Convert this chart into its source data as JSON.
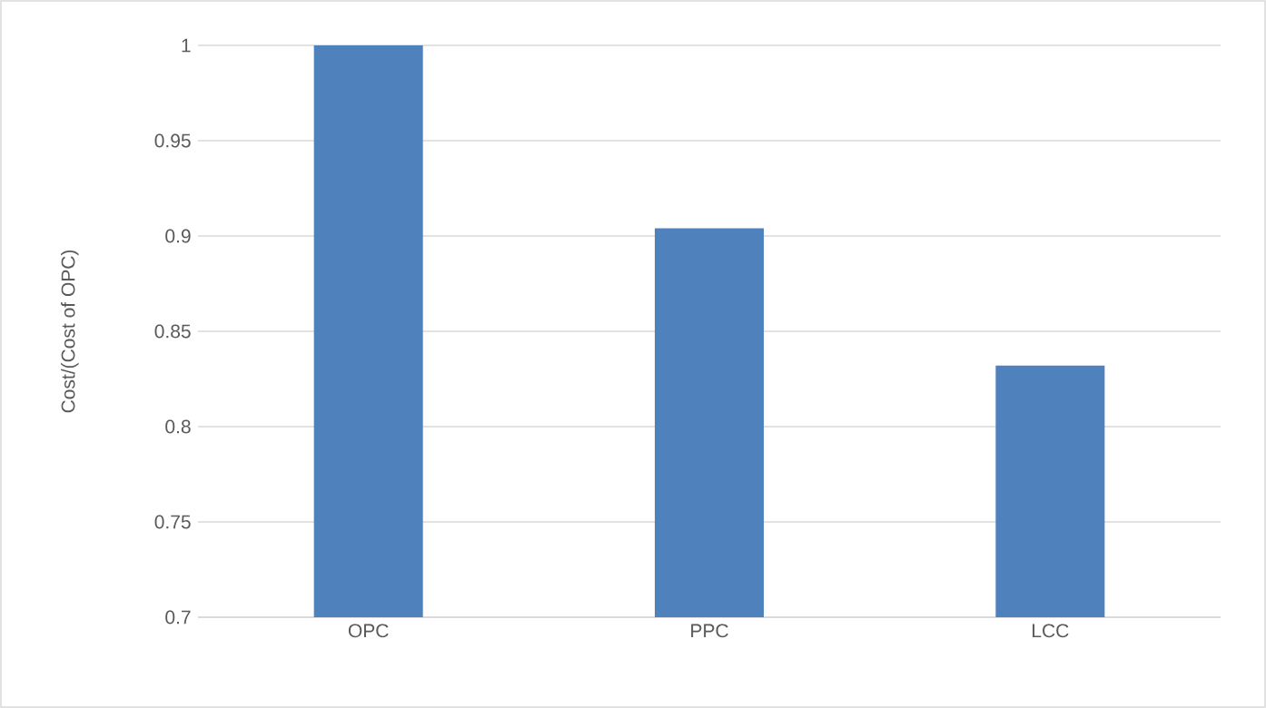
{
  "chart_data": {
    "type": "bar",
    "ylabel": "Cost/(Cost of OPC)",
    "categories": [
      "OPC",
      "PPC",
      "LCC"
    ],
    "values": [
      1.0,
      0.904,
      0.832
    ],
    "color": "#4f81bd",
    "ylim": [
      0.7,
      1.0
    ],
    "yticks": [
      {
        "value": 0.7,
        "label": "0.7"
      },
      {
        "value": 0.75,
        "label": "0.75"
      },
      {
        "value": 0.8,
        "label": "0.8"
      },
      {
        "value": 0.85,
        "label": "0.85"
      },
      {
        "value": 0.9,
        "label": "0.9"
      },
      {
        "value": 0.95,
        "label": "0.95"
      },
      {
        "value": 1.0,
        "label": "1"
      }
    ],
    "grid": "y"
  }
}
